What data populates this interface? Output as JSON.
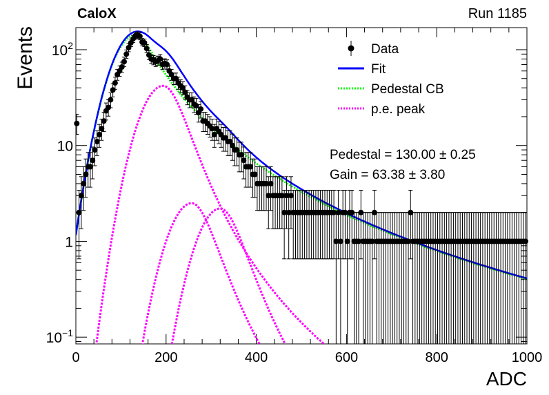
{
  "header": {
    "left": "CaloX",
    "right": "Run 1185"
  },
  "chart_data": {
    "type": "scatter",
    "title": "",
    "xlabel": "ADC",
    "ylabel": "Events",
    "xlim": [
      0,
      1000
    ],
    "ylim": [
      0.085,
      170
    ],
    "y_scale": "log",
    "grid": false,
    "legend_position": "top-right",
    "x_ticks": [
      0,
      200,
      400,
      600,
      800,
      1000
    ],
    "x_tick_labels": [
      "0",
      "200",
      "400",
      "600",
      "800",
      "1000"
    ],
    "y_ticks": [
      0.1,
      1,
      10,
      100
    ],
    "y_tick_labels": [
      {
        "base": "10",
        "exp": "−1"
      },
      {
        "base": "1",
        "exp": ""
      },
      {
        "base": "10",
        "exp": ""
      },
      {
        "base": "10",
        "exp": "2"
      }
    ],
    "legend": [
      {
        "label": "Data",
        "style": "marker",
        "color": "#000000"
      },
      {
        "label": "Fit",
        "style": "solid",
        "color": "#0000ff"
      },
      {
        "label": "Pedestal CB",
        "style": "dotted",
        "color": "#00ff00"
      },
      {
        "label": "p.e. peak",
        "style": "dotted",
        "color": "#ff00ff"
      }
    ],
    "annotations": [
      "Pedestal = 130.00 ± 0.25",
      "Gain = 63.38 ± 3.80"
    ],
    "series": [
      {
        "name": "Data",
        "kind": "points",
        "color": "#000000",
        "x": [
          2,
          7,
          12,
          17,
          22,
          27,
          32,
          37,
          42,
          47,
          52,
          57,
          62,
          67,
          72,
          77,
          82,
          87,
          92,
          97,
          102,
          107,
          112,
          117,
          122,
          127,
          132,
          137,
          142,
          147,
          152,
          157,
          162,
          167,
          172,
          177,
          182,
          187,
          192,
          197,
          202,
          207,
          212,
          217,
          222,
          227,
          232,
          237,
          242,
          247,
          252,
          257,
          262,
          267,
          272,
          277,
          282,
          287,
          292,
          297,
          302,
          307,
          312,
          317,
          322,
          327,
          332,
          337,
          342,
          347,
          352,
          357,
          362,
          367,
          372,
          377,
          382,
          387,
          392,
          397,
          402,
          407,
          412,
          417,
          422,
          427,
          432,
          437,
          442,
          447,
          452,
          457,
          462,
          467,
          472,
          477,
          482,
          487,
          492,
          497,
          502,
          507,
          512,
          517,
          522,
          527,
          532,
          537,
          542,
          547,
          552,
          557,
          562,
          567,
          572,
          577,
          582,
          587,
          592,
          597,
          602,
          607,
          612,
          617,
          622,
          627,
          632,
          637,
          642,
          647,
          652,
          657,
          662,
          667,
          672,
          677,
          682,
          687,
          692,
          697,
          702,
          707,
          712,
          717,
          722,
          727,
          732,
          737,
          742,
          747,
          752,
          757,
          762,
          767,
          772,
          777,
          782,
          787,
          792,
          797,
          802,
          807,
          812,
          817,
          822,
          827,
          832,
          837,
          842,
          847,
          852,
          857,
          862,
          867,
          872,
          877,
          882,
          887,
          892,
          897,
          902,
          907,
          912,
          917,
          922,
          927,
          932,
          937,
          942,
          947,
          952,
          957,
          962,
          967,
          972,
          977,
          982,
          987,
          992,
          997
        ],
        "y": [
          17,
          2,
          3,
          4,
          5,
          6,
          6,
          7,
          9,
          11,
          13,
          15,
          18,
          23,
          25,
          30,
          38,
          45,
          55,
          60,
          66,
          75,
          90,
          105,
          118,
          130,
          140,
          142,
          138,
          120,
          118,
          103,
          88,
          80,
          78,
          75,
          77,
          80,
          70,
          72,
          70,
          60,
          55,
          50,
          50,
          45,
          42,
          40,
          36,
          32,
          30,
          30,
          27,
          26,
          22,
          24,
          18,
          18,
          17,
          16,
          15,
          13,
          15,
          14,
          13,
          12,
          12,
          11,
          11,
          10,
          9,
          9,
          8,
          8,
          7,
          6,
          6,
          6,
          5,
          5,
          4,
          4,
          4,
          4,
          4,
          3,
          4,
          3,
          3,
          3,
          3,
          3,
          2,
          3,
          2,
          3,
          2,
          2,
          2,
          2,
          2,
          2,
          2,
          2,
          2,
          2,
          2,
          2,
          2,
          2,
          2,
          2,
          2,
          2,
          2,
          1,
          2,
          1,
          2,
          2,
          1,
          2,
          2,
          1,
          1,
          1,
          2,
          1,
          1,
          1,
          1,
          1,
          2,
          1,
          1,
          1,
          1,
          1,
          1,
          1,
          1,
          1,
          1,
          1,
          1,
          1,
          1,
          1,
          2,
          1,
          1,
          1,
          1,
          1,
          1,
          1,
          1,
          1,
          1,
          1,
          1,
          1,
          1,
          1,
          1,
          1,
          1,
          1,
          1,
          1,
          1,
          1,
          1,
          1,
          1,
          1,
          1,
          1,
          1,
          1,
          1,
          1,
          1,
          1,
          1,
          1,
          1,
          1,
          1,
          1,
          1,
          1,
          1,
          1,
          1,
          1,
          1,
          1,
          1,
          1
        ]
      },
      {
        "name": "Fit",
        "kind": "curve",
        "color": "#0000ff"
      },
      {
        "name": "Pedestal CB",
        "kind": "curve",
        "color": "#00ff00"
      },
      {
        "name": "p.e. peak",
        "kind": "curve",
        "color": "#ff00ff"
      }
    ],
    "model": {
      "pedestal": {
        "mean": 130,
        "sigma": 42,
        "alpha": 0.8,
        "n": 3.0,
        "amp": 140
      },
      "pe_peaks": [
        {
          "mean": 193.4,
          "sigma": 42,
          "amp": 42
        },
        {
          "mean": 256.8,
          "sigma": 42,
          "amp": 2.5
        },
        {
          "mean": 320.1,
          "sigma": 42,
          "amp": 2.2
        }
      ]
    }
  }
}
